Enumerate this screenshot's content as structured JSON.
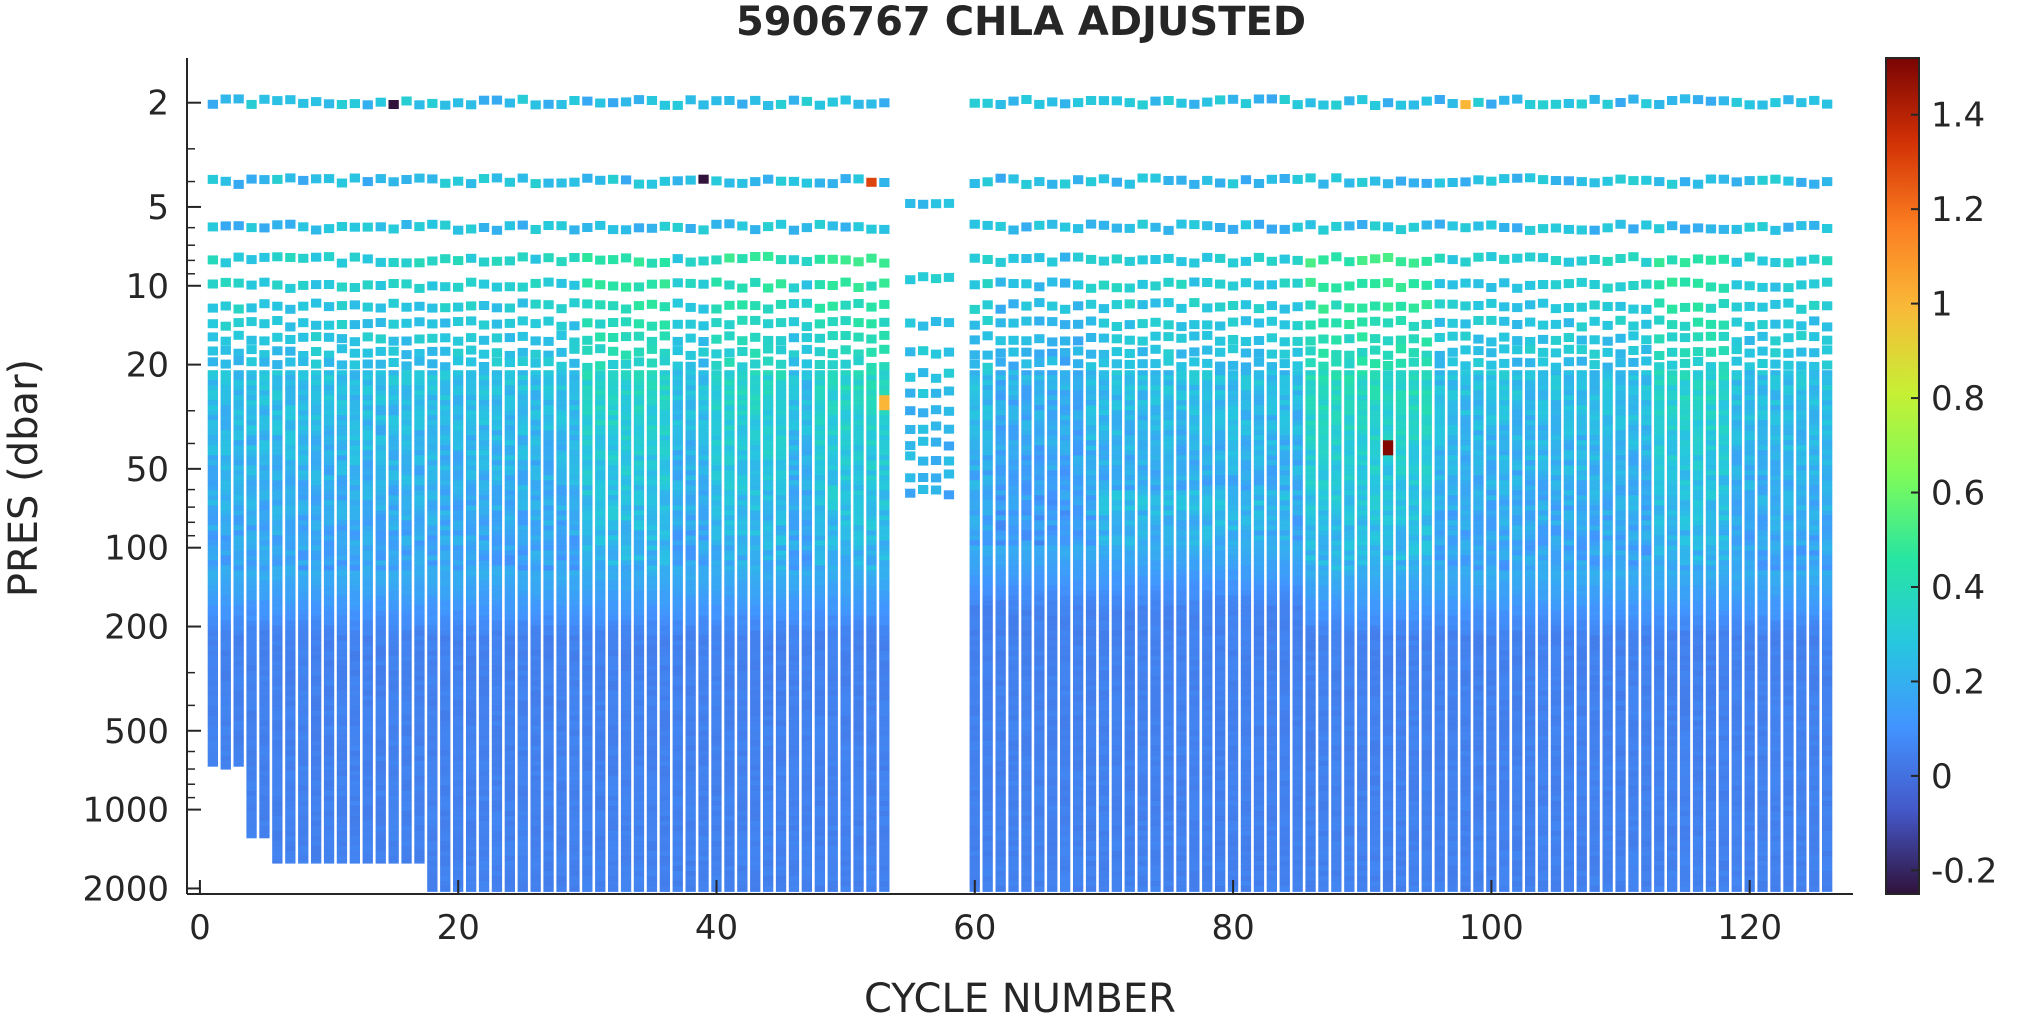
{
  "chart_data": {
    "type": "heatmap",
    "title": "5906767  CHLA ADJUSTED",
    "xlabel": "CYCLE NUMBER",
    "ylabel": "PRES (dbar)",
    "x_range": [
      -1,
      128
    ],
    "x_ticks": [
      0,
      20,
      40,
      60,
      80,
      100,
      120
    ],
    "x_tick_labels": [
      "0",
      "20",
      "40",
      "60",
      "80",
      "100",
      "120"
    ],
    "y_scale": "log",
    "y_reversed": true,
    "y_range": [
      1.35,
      2100
    ],
    "y_ticks": [
      2,
      5,
      10,
      20,
      50,
      100,
      200,
      500,
      1000,
      2000
    ],
    "y_tick_labels": [
      "2",
      "5",
      "10",
      "20",
      "50",
      "100",
      "200",
      "500",
      "1000",
      "2000"
    ],
    "colorbar": {
      "colormap": "turbo",
      "range": [
        -0.25,
        1.52
      ],
      "ticks": [
        -0.2,
        0,
        0.2,
        0.4,
        0.6,
        0.8,
        1,
        1.2,
        1.4
      ],
      "tick_labels": [
        "-0.2",
        "0",
        "0.2",
        "0.4",
        "0.6",
        "0.8",
        "1",
        "1.2",
        "1.4"
      ]
    },
    "cycles": {
      "first": 1,
      "last": 126,
      "gap_cycles": [
        54,
        59
      ],
      "special_cycles_sparse_profile": [
        55,
        56,
        57,
        58
      ],
      "sparse_profile_max_pressure": 62
    },
    "max_pressure_by_cycle": [
      {
        "from": 1,
        "to": 1,
        "pressure": 680
      },
      {
        "from": 2,
        "to": 2,
        "pressure": 700
      },
      {
        "from": 3,
        "to": 3,
        "pressure": 680
      },
      {
        "from": 4,
        "to": 5,
        "pressure": 1280
      },
      {
        "from": 6,
        "to": 17,
        "pressure": 1600
      },
      {
        "from": 18,
        "to": 53,
        "pressure": 2050
      },
      {
        "from": 55,
        "to": 58,
        "pressure": 62
      },
      {
        "from": 60,
        "to": 126,
        "pressure": 2050
      }
    ],
    "profile_description": {
      "surface_value": 0.25,
      "mixed_layer_value_range": [
        0.3,
        0.55
      ],
      "deep_value": 0.05,
      "deep_transition_pressure": 120,
      "notable_values": [
        {
          "cycle": 92,
          "pressure": 40,
          "value": 1.5
        },
        {
          "cycle": 52,
          "pressure": 4,
          "value": 1.3
        },
        {
          "cycle": 98,
          "pressure": 2,
          "value": 1.0
        },
        {
          "cycle": 53,
          "pressure": 27,
          "value": 1.0
        },
        {
          "cycle": 39,
          "pressure": 4,
          "value": -0.25
        },
        {
          "cycle": 15,
          "pressure": 2,
          "value": -0.25
        }
      ]
    }
  }
}
